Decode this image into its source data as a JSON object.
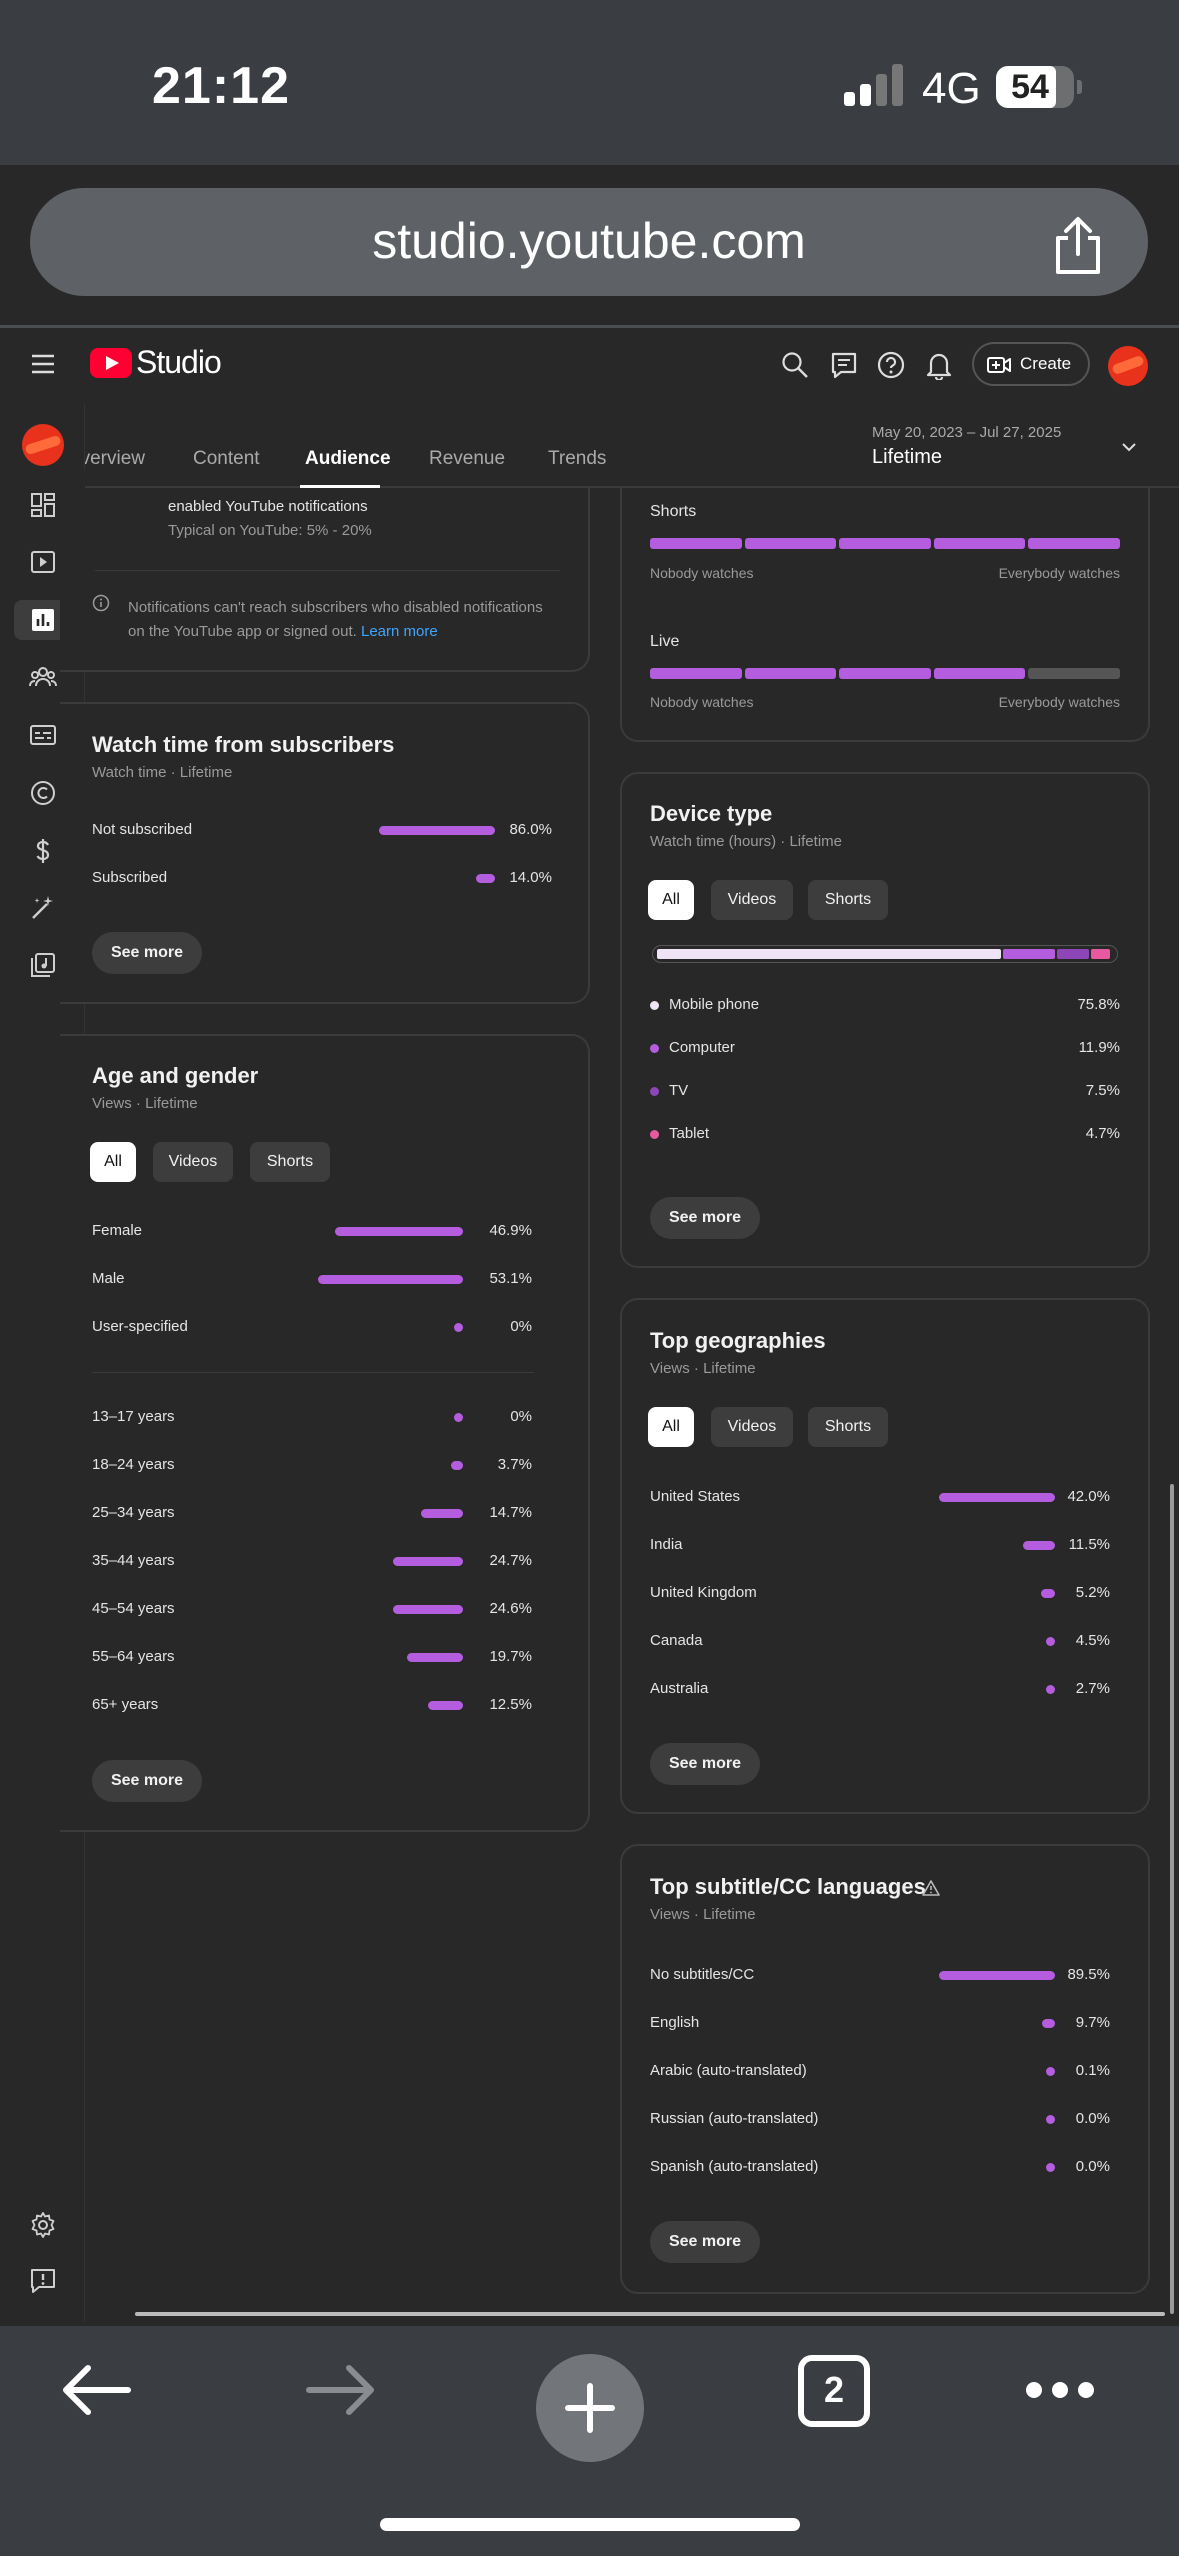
{
  "status": {
    "time": "21:12",
    "network": "4G",
    "battery": "54"
  },
  "browser": {
    "url": "studio.youtube.com",
    "tabs_count": "2"
  },
  "header": {
    "brand": "Studio",
    "create_label": "Create"
  },
  "tabs": [
    {
      "label": "Overview"
    },
    {
      "label": "Content"
    },
    {
      "label": "Audience"
    },
    {
      "label": "Revenue"
    },
    {
      "label": "Trends"
    }
  ],
  "date": {
    "range": "May 20, 2023 – Jul 27, 2025",
    "label": "Lifetime"
  },
  "notif_card": {
    "line1": "enabled YouTube notifications",
    "line2": "Typical on YouTube: 5% - 20%",
    "note": "Notifications can't reach subscribers who disabled notifications on the YouTube app or signed out.",
    "learn_more": "Learn more"
  },
  "watch_subs": {
    "title": "Watch time from subscribers",
    "subtitle": "Watch time · Lifetime",
    "rows": [
      {
        "label": "Not subscribed",
        "value": "86.0%",
        "pct": 86.0
      },
      {
        "label": "Subscribed",
        "value": "14.0%",
        "pct": 14.0
      }
    ],
    "see_more": "See more"
  },
  "age_gender": {
    "title": "Age and gender",
    "subtitle": "Views · Lifetime",
    "filters": [
      "All",
      "Videos",
      "Shorts"
    ],
    "gender": [
      {
        "label": "Female",
        "value": "46.9%",
        "pct": 46.9
      },
      {
        "label": "Male",
        "value": "53.1%",
        "pct": 53.1
      },
      {
        "label": "User-specified",
        "value": "0%",
        "pct": 0
      }
    ],
    "ages": [
      {
        "label": "13–17 years",
        "value": "0%",
        "pct": 0
      },
      {
        "label": "18–24 years",
        "value": "3.7%",
        "pct": 3.7
      },
      {
        "label": "25–34 years",
        "value": "14.7%",
        "pct": 14.7
      },
      {
        "label": "35–44 years",
        "value": "24.7%",
        "pct": 24.7
      },
      {
        "label": "45–54 years",
        "value": "24.6%",
        "pct": 24.6
      },
      {
        "label": "55–64 years",
        "value": "19.7%",
        "pct": 19.7
      },
      {
        "label": "65+ years",
        "value": "12.5%",
        "pct": 12.5
      }
    ],
    "see_more": "See more"
  },
  "watch_behavior": {
    "shorts_label": "Shorts",
    "live_label": "Live",
    "nobody": "Nobody watches",
    "everybody": "Everybody watches",
    "shorts_level": 5,
    "live_level": 4,
    "segments": 5
  },
  "device": {
    "title": "Device type",
    "subtitle": "Watch time (hours) · Lifetime",
    "filters": [
      "All",
      "Videos",
      "Shorts"
    ],
    "rows": [
      {
        "label": "Mobile phone",
        "value": "75.8%",
        "pct": 75.8,
        "color": "#efe3f6"
      },
      {
        "label": "Computer",
        "value": "11.9%",
        "pct": 11.9,
        "color": "#b55ddf"
      },
      {
        "label": "TV",
        "value": "7.5%",
        "pct": 7.5,
        "color": "#8c46b8"
      },
      {
        "label": "Tablet",
        "value": "4.7%",
        "pct": 4.7,
        "color": "#e85aa0"
      }
    ],
    "see_more": "See more"
  },
  "geo": {
    "title": "Top geographies",
    "subtitle": "Views · Lifetime",
    "filters": [
      "All",
      "Videos",
      "Shorts"
    ],
    "rows": [
      {
        "label": "United States",
        "value": "42.0%",
        "pct": 42.0
      },
      {
        "label": "India",
        "value": "11.5%",
        "pct": 11.5
      },
      {
        "label": "United Kingdom",
        "value": "5.2%",
        "pct": 5.2
      },
      {
        "label": "Canada",
        "value": "4.5%",
        "pct": 4.5
      },
      {
        "label": "Australia",
        "value": "2.7%",
        "pct": 2.7
      }
    ],
    "see_more": "See more"
  },
  "subtitles": {
    "title": "Top subtitle/CC languages",
    "subtitle": "Views · Lifetime",
    "rows": [
      {
        "label": "No subtitles/CC",
        "value": "89.5%",
        "pct": 89.5
      },
      {
        "label": "English",
        "value": "9.7%",
        "pct": 9.7
      },
      {
        "label": "Arabic (auto-translated)",
        "value": "0.1%",
        "pct": 0.1
      },
      {
        "label": "Russian (auto-translated)",
        "value": "0.0%",
        "pct": 0.0
      },
      {
        "label": "Spanish (auto-translated)",
        "value": "0.0%",
        "pct": 0.0
      }
    ],
    "see_more": "See more"
  },
  "colors": {
    "accent": "#b55ddf",
    "brand": "#ff0033",
    "bg": "#282828"
  }
}
